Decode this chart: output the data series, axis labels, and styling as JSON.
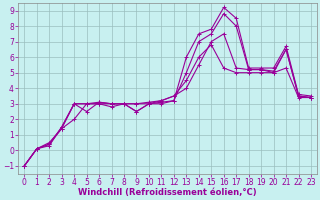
{
  "xlabel": "Windchill (Refroidissement éolien,°C)",
  "ylabel": "",
  "bg_color": "#c8f0f0",
  "grid_color": "#9bbebe",
  "line_color": "#990099",
  "spine_color": "#888888",
  "xlim": [
    -0.5,
    23.5
  ],
  "ylim": [
    -1.5,
    9.5
  ],
  "xticks": [
    0,
    1,
    2,
    3,
    4,
    5,
    6,
    7,
    8,
    9,
    10,
    11,
    12,
    13,
    14,
    15,
    16,
    17,
    18,
    19,
    20,
    21,
    22,
    23
  ],
  "yticks": [
    -1,
    0,
    1,
    2,
    3,
    4,
    5,
    6,
    7,
    8,
    9
  ],
  "series": [
    {
      "x": [
        0,
        1,
        2,
        3,
        4,
        5,
        6,
        7,
        8,
        9,
        10,
        11,
        12,
        13,
        14,
        15,
        16,
        17,
        18,
        19,
        20,
        21,
        22,
        23
      ],
      "y": [
        -1,
        0.1,
        0.5,
        1.4,
        3.0,
        3.0,
        3.0,
        3.0,
        3.0,
        2.5,
        3.0,
        3.1,
        3.2,
        6.0,
        7.5,
        7.8,
        9.2,
        8.5,
        5.3,
        5.3,
        5.3,
        6.7,
        3.6,
        3.5
      ]
    },
    {
      "x": [
        0,
        1,
        2,
        3,
        4,
        5,
        6,
        7,
        8,
        9,
        10,
        11,
        12,
        13,
        14,
        15,
        16,
        17,
        18,
        19,
        20,
        21,
        22,
        23
      ],
      "y": [
        -1,
        0.1,
        0.4,
        1.4,
        2.0,
        3.0,
        3.0,
        2.8,
        3.0,
        2.5,
        3.0,
        3.0,
        3.2,
        5.0,
        7.0,
        7.5,
        8.8,
        8.0,
        5.2,
        5.2,
        5.0,
        6.5,
        3.5,
        3.4
      ]
    },
    {
      "x": [
        0,
        1,
        2,
        3,
        4,
        5,
        6,
        7,
        8,
        9,
        10,
        11,
        12,
        13,
        14,
        15,
        16,
        17,
        18,
        19,
        20,
        21,
        22,
        23
      ],
      "y": [
        -1,
        0.1,
        0.4,
        1.5,
        3.0,
        3.0,
        3.1,
        3.0,
        3.0,
        3.0,
        3.0,
        3.2,
        3.5,
        4.0,
        5.5,
        7.0,
        7.5,
        5.3,
        5.2,
        5.2,
        5.1,
        6.5,
        3.5,
        3.4
      ]
    },
    {
      "x": [
        0,
        1,
        2,
        3,
        4,
        5,
        6,
        7,
        8,
        9,
        10,
        11,
        12,
        13,
        14,
        15,
        16,
        17,
        18,
        19,
        20,
        21,
        22,
        23
      ],
      "y": [
        -1,
        0.1,
        0.3,
        1.5,
        3.0,
        2.5,
        3.1,
        3.0,
        3.0,
        3.0,
        3.1,
        3.2,
        3.5,
        4.5,
        6.0,
        6.8,
        5.3,
        5.0,
        5.0,
        5.0,
        5.0,
        5.3,
        3.4,
        3.4
      ]
    }
  ],
  "marker": "+",
  "markersize": 3,
  "linewidth": 0.8,
  "tick_fontsize": 5.5,
  "xlabel_fontsize": 6
}
